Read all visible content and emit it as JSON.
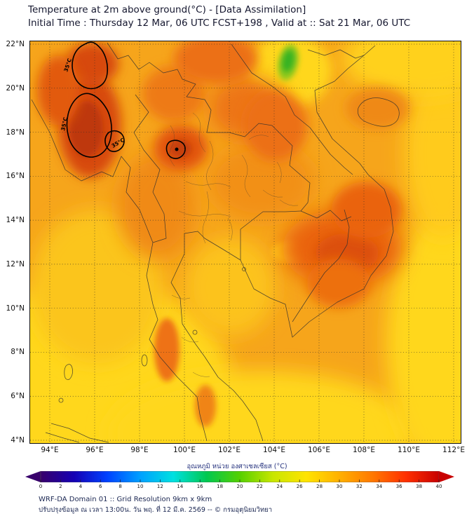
{
  "header": {
    "title": "Temperature at 2m above ground(°C) - [Data Assimilation]",
    "subtitle": "Initial Time : Thursday 12 Mar, 06 UTC FCST+198 , Valid at :: Sat 21 Mar, 06 UTC"
  },
  "map": {
    "contour_label": "35°C",
    "y_axis_labels": [
      "22°N",
      "20°N",
      "18°N",
      "16°N",
      "14°N",
      "12°N",
      "10°N",
      "8°N",
      "6°N",
      "4°N"
    ],
    "x_axis_labels": [
      "94°E",
      "96°E",
      "98°E",
      "100°E",
      "102°E",
      "104°E",
      "106°E",
      "108°E",
      "110°E",
      "112°E"
    ]
  },
  "colorbar": {
    "label": "อุณหภูมิ หน่วย องศาเซลเซียส (°C)",
    "tick_values": [
      0,
      2,
      4,
      6,
      8,
      10,
      12,
      14,
      16,
      18,
      20,
      22,
      24,
      26,
      28,
      30,
      32,
      34,
      36,
      38,
      40
    ],
    "gradient_colors": [
      "#38006b",
      "#1500b4",
      "#0041ff",
      "#00a0ff",
      "#00e0e0",
      "#00c850",
      "#55d000",
      "#c8e600",
      "#ffe400",
      "#ffb000",
      "#ff7800",
      "#ff3000",
      "#c80000"
    ]
  },
  "footer": {
    "line1": "WRF-DA Domain 01 :: Grid Resolution 9km x 9km",
    "line2": "ปรับปรุงข้อมูล ณ เวลา 13:00น. วัน พฤ. ที่ 12 มี.ค. 2569 -- © กรมอุตุนิยมวิทยา"
  },
  "chart_data": {
    "type": "heatmap",
    "title": "Temperature at 2m above ground(°C) - [Data Assimilation]",
    "subtitle": "Initial Time : Thursday 12 Mar, 06 UTC FCST+198 , Valid at :: Sat 21 Mar, 06 UTC",
    "x_ticks": [
      "94°E",
      "96°E",
      "98°E",
      "100°E",
      "102°E",
      "104°E",
      "106°E",
      "108°E",
      "110°E",
      "112°E"
    ],
    "y_ticks": [
      "22°N",
      "20°N",
      "18°N",
      "16°N",
      "14°N",
      "12°N",
      "10°N",
      "8°N",
      "6°N",
      "4°N"
    ],
    "x_range_deg_east": [
      93.2,
      112.5
    ],
    "y_range_deg_north": [
      4,
      22.1
    ],
    "grid": "dotted",
    "legend_position": "bottom colorbar",
    "colorbar": {
      "label": "อุณหภูมิ หน่วย องศาเซลเซียส (°C)",
      "min": 0,
      "max": 40,
      "tick_step": 2,
      "unit": "°C"
    },
    "contours": [
      {
        "value_c": 35,
        "locations": [
          "northwest Myanmar lowlands (two closed loops)",
          "small loop near 98.5°E 17°N",
          "small loop central-north Thailand near 100°E 17°N"
        ]
      }
    ],
    "regions": [
      {
        "area": "Northwest Myanmar / Irrawaddy valley",
        "approx_temp_c": "35-37",
        "shade": "dark orange-red inside 35°C contours"
      },
      {
        "area": "Central and north Thailand hot spot near 100°E 17°N",
        "approx_temp_c": "34-36",
        "shade": "red-orange"
      },
      {
        "area": "Northeast Thailand (Khorat plateau)",
        "approx_temp_c": "32-34",
        "shade": "orange"
      },
      {
        "area": "Cambodia / southern Vietnam lowlands",
        "approx_temp_c": "33-35",
        "shade": "orange-red"
      },
      {
        "area": "Highlands near 104.5°E 21°N (north Vietnam)",
        "approx_temp_c": "16-20",
        "shade": "green cool patch"
      },
      {
        "area": "Gulf of Thailand and Andaman Sea",
        "approx_temp_c": "29-31",
        "shade": "yellow-orange"
      },
      {
        "area": "South China Sea (eastern edge)",
        "approx_temp_c": "28-30",
        "shade": "yellow"
      },
      {
        "area": "Southern peninsula and equatorial seas (4-7°N)",
        "approx_temp_c": "28-30",
        "shade": "yellow"
      }
    ]
  }
}
